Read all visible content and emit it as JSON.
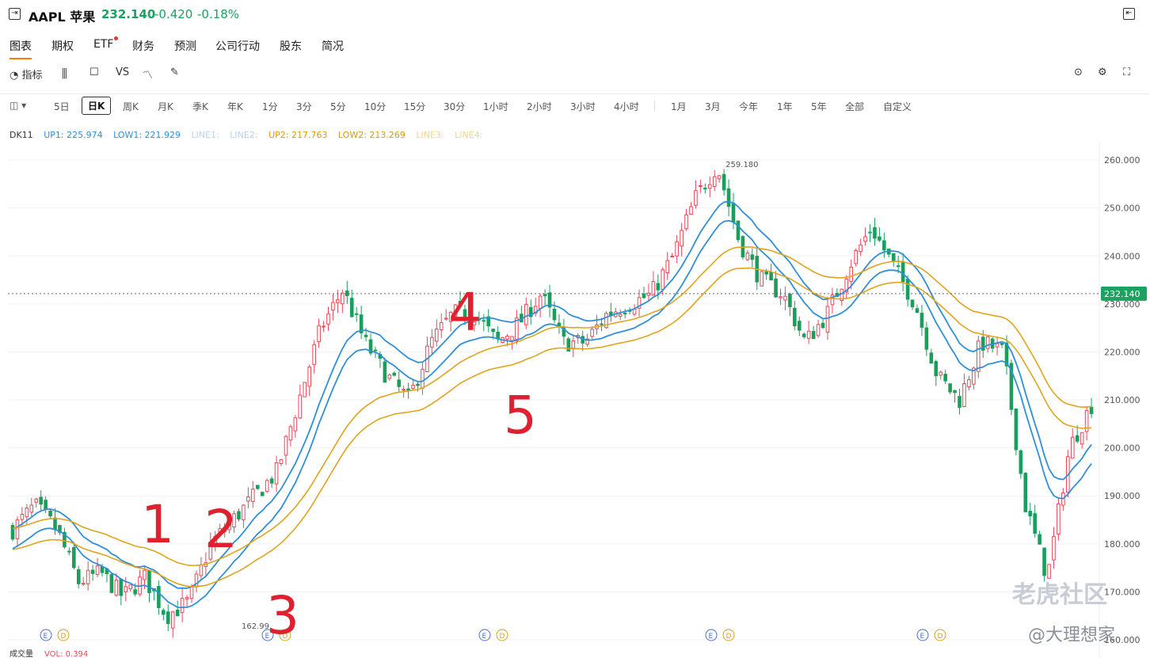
{
  "header": {
    "symbol": "AAPL 苹果",
    "price": "232.140",
    "change": "-0.420",
    "change_pct": "-0.18%",
    "exit_icon": "exit-icon",
    "collapse_icon": "collapse-icon"
  },
  "tabs": [
    "图表",
    "期权",
    "ETF",
    "财务",
    "预测",
    "公司行动",
    "股东",
    "简况"
  ],
  "toolbar": {
    "indicator_label": "指标",
    "vs_label": "VS"
  },
  "periods": [
    "5日",
    "日K",
    "周K",
    "月K",
    "季K",
    "年K",
    "1分",
    "3分",
    "5分",
    "10分",
    "15分",
    "30分",
    "1小时",
    "2小时",
    "3小时",
    "4小时",
    "1月",
    "3月",
    "今年",
    "1年",
    "5年",
    "全部",
    "自定义"
  ],
  "legend": {
    "name": "DK11",
    "up1": "UP1: 225.974",
    "low1": "LOW1: 221.929",
    "line1": "LINE1:",
    "line2": "LINE2:",
    "up2": "UP2: 217.763",
    "low2": "LOW2: 213.269",
    "line3": "LINE3:",
    "line4": "LINE4:"
  },
  "colors": {
    "up": "#e8485a",
    "down": "#1a9e5c",
    "blue": "#2f8fd8",
    "gold": "#e0a41c",
    "price_tag": "#1aa260"
  },
  "chart_data": {
    "type": "candlestick",
    "y_ticks": [
      "260.000",
      "250.000",
      "240.000",
      "230.000",
      "220.000",
      "210.000",
      "200.000",
      "190.000",
      "180.000",
      "170.000",
      "160.000"
    ],
    "ylim": [
      160,
      262
    ],
    "current_price": "232.140",
    "high_label": "259.180",
    "low_label": "162.99",
    "volume_label": "成交量",
    "vol_value": "VOL: 0.394",
    "event_markers": [
      [
        "E",
        "D"
      ],
      [
        "E",
        "D"
      ],
      [
        "E",
        "D"
      ],
      [
        "E",
        "D"
      ],
      [
        "E",
        "D"
      ]
    ],
    "annotations": [
      "1",
      "2",
      "3",
      "4",
      "5"
    ],
    "series_anchor_closes": [
      183,
      188,
      183,
      172,
      174,
      169,
      173,
      165,
      168,
      180,
      185,
      190,
      195,
      210,
      225,
      233,
      222,
      215,
      210,
      222,
      228,
      228,
      222,
      226,
      232,
      222,
      222,
      228,
      230,
      232,
      240,
      252,
      259,
      243,
      235,
      232,
      222,
      228,
      238,
      246,
      238,
      230,
      215,
      210,
      222,
      220,
      188,
      173,
      200,
      209
    ]
  },
  "watermark": {
    "brand": "老虎社区",
    "author": "@大理想家"
  }
}
